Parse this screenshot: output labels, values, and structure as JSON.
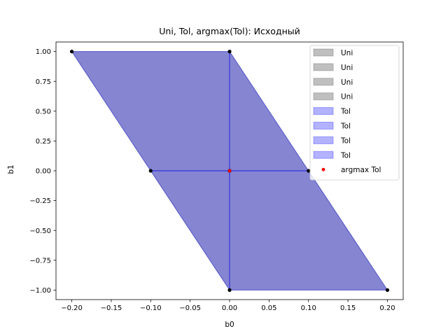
{
  "chart_data": {
    "type": "area",
    "title": "Uni, Tol, argmax(Tol): Исходный",
    "xlabel": "b0",
    "ylabel": "b1",
    "xlim": [
      -0.22,
      0.22
    ],
    "ylim": [
      -1.08,
      1.08
    ],
    "xticks": [
      -0.2,
      -0.15,
      -0.1,
      -0.05,
      0.0,
      0.05,
      0.1,
      0.15,
      0.2
    ],
    "xtick_labels": [
      "−0.20",
      "−0.15",
      "−0.10",
      "−0.05",
      "0.00",
      "0.05",
      "0.10",
      "0.15",
      "0.20"
    ],
    "yticks": [
      -1.0,
      -0.75,
      -0.5,
      -0.25,
      0.0,
      0.25,
      0.5,
      0.75,
      1.0
    ],
    "ytick_labels": [
      "−1.00",
      "−0.75",
      "−0.50",
      "−0.25",
      "0.00",
      "0.25",
      "0.50",
      "0.75",
      "1.00"
    ],
    "grid": false,
    "legend_position": "top-right",
    "colors": {
      "uni_fill": "#808080",
      "tol_fill": "#0000ff",
      "tol_edge": "#3333dd",
      "vertex": "#000000",
      "argmax": "#ff0000"
    },
    "series": [
      {
        "name": "Uni",
        "kind": "region",
        "polygon": [
          [
            -0.2,
            1.0
          ],
          [
            0.0,
            1.0
          ],
          [
            0.0,
            0.0
          ],
          [
            -0.1,
            0.0
          ]
        ]
      },
      {
        "name": "Uni",
        "kind": "region",
        "polygon": [
          [
            0.0,
            1.0
          ],
          [
            0.1,
            0.0
          ],
          [
            0.0,
            0.0
          ]
        ]
      },
      {
        "name": "Uni",
        "kind": "region",
        "polygon": [
          [
            -0.1,
            0.0
          ],
          [
            0.0,
            0.0
          ],
          [
            0.0,
            -1.0
          ]
        ]
      },
      {
        "name": "Uni",
        "kind": "region",
        "polygon": [
          [
            0.0,
            0.0
          ],
          [
            0.1,
            0.0
          ],
          [
            0.2,
            -1.0
          ],
          [
            0.0,
            -1.0
          ]
        ]
      },
      {
        "name": "Tol",
        "kind": "region",
        "polygon": [
          [
            -0.2,
            1.0
          ],
          [
            0.0,
            1.0
          ],
          [
            0.0,
            0.0
          ],
          [
            -0.1,
            0.0
          ]
        ]
      },
      {
        "name": "Tol",
        "kind": "region",
        "polygon": [
          [
            0.0,
            1.0
          ],
          [
            0.1,
            0.0
          ],
          [
            0.0,
            0.0
          ]
        ]
      },
      {
        "name": "Tol",
        "kind": "region",
        "polygon": [
          [
            -0.1,
            0.0
          ],
          [
            0.0,
            0.0
          ],
          [
            0.0,
            -1.0
          ]
        ]
      },
      {
        "name": "Tol",
        "kind": "region",
        "polygon": [
          [
            0.0,
            0.0
          ],
          [
            0.1,
            0.0
          ],
          [
            0.2,
            -1.0
          ],
          [
            0.0,
            -1.0
          ]
        ]
      },
      {
        "name": "argmax Tol",
        "kind": "point",
        "points": [
          [
            0.0,
            0.0
          ]
        ]
      }
    ],
    "vertices": [
      [
        -0.2,
        1.0
      ],
      [
        0.0,
        1.0
      ],
      [
        -0.1,
        0.0
      ],
      [
        0.0,
        0.0
      ],
      [
        0.1,
        0.0
      ],
      [
        0.0,
        -1.0
      ],
      [
        0.2,
        -1.0
      ]
    ],
    "legend": [
      "Uni",
      "Uni",
      "Uni",
      "Uni",
      "Tol",
      "Tol",
      "Tol",
      "Tol",
      "argmax Tol"
    ]
  }
}
